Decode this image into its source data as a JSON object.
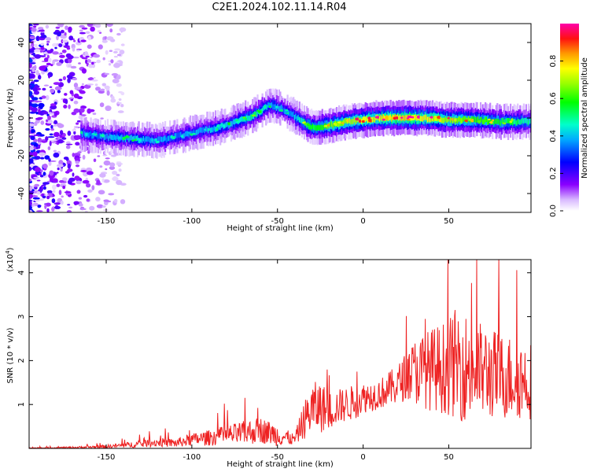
{
  "title": "C2E1.2024.102.11.14.R04",
  "colors": {
    "signal": "#ee2222",
    "frame": "#000000"
  },
  "chart_data": [
    {
      "type": "heatmap",
      "xlabel": "Height of straight line (km)",
      "ylabel": "Frequency (Hz)",
      "xlim": [
        -195,
        98
      ],
      "ylim": [
        -50,
        50
      ],
      "xticks": [
        -150,
        -100,
        -50,
        0,
        50
      ],
      "yticks": [
        -40,
        -20,
        0,
        20,
        40
      ],
      "colorbar": {
        "label": "Normalized spectral amplitude",
        "range": [
          0,
          1
        ],
        "ticks": [
          "0.0",
          "0.2",
          "0.4",
          "0.6",
          "0.8"
        ],
        "colormap": "rainbow (white-violet-blue-cyan-green-yellow-red-magenta)"
      },
      "ridge": {
        "x": [
          -195,
          -180,
          -165,
          -150,
          -135,
          -120,
          -100,
          -80,
          -65,
          -55,
          -48,
          -42,
          -36,
          -30,
          -20,
          -10,
          0,
          10,
          20,
          35,
          50,
          65,
          80,
          98
        ],
        "y": [
          -10,
          -9,
          -8,
          -10,
          -11,
          -12,
          -8,
          -4,
          1,
          7,
          5,
          2,
          -2,
          -5,
          -4,
          -2,
          -1,
          0,
          0,
          0,
          -1,
          -1,
          -2,
          -2
        ],
        "peak_amplitude": [
          0.25,
          0.35,
          0.45,
          0.45,
          0.5,
          0.45,
          0.45,
          0.5,
          0.6,
          0.5,
          0.45,
          0.45,
          0.6,
          0.7,
          0.8,
          0.85,
          0.9,
          0.95,
          1.0,
          0.95,
          0.85,
          0.75,
          0.7,
          0.6
        ]
      }
    },
    {
      "type": "line",
      "xlabel": "Height of straight line (km)",
      "ylabel": "SNR (10 * v/v)",
      "multiplier": "(x10",
      "multiplier_exp": "4",
      "xlim": [
        -195,
        98
      ],
      "ylim": [
        0,
        4.3
      ],
      "xticks": [
        -150,
        -100,
        -50,
        0,
        50
      ],
      "yticks": [
        1,
        2,
        3,
        4
      ],
      "series": [
        {
          "name": "SNR",
          "x": [
            -195,
            -170,
            -150,
            -130,
            -120,
            -110,
            -100,
            -90,
            -80,
            -70,
            -60,
            -50,
            -40,
            -35,
            -30,
            -25,
            -20,
            -15,
            -10,
            -5,
            0,
            10,
            20,
            25,
            30,
            40,
            50,
            55,
            60,
            70,
            80,
            90,
            98
          ],
          "mean": [
            0.01,
            0.02,
            0.04,
            0.1,
            0.14,
            0.12,
            0.2,
            0.24,
            0.3,
            0.34,
            0.42,
            0.3,
            0.2,
            0.6,
            0.9,
            0.95,
            0.85,
            0.95,
            1.0,
            1.05,
            1.15,
            1.25,
            1.45,
            1.65,
            1.75,
            1.8,
            1.85,
            1.95,
            1.85,
            1.75,
            1.65,
            1.6,
            1.55
          ],
          "spread": [
            0.01,
            0.02,
            0.04,
            0.08,
            0.1,
            0.1,
            0.14,
            0.18,
            0.22,
            0.28,
            0.3,
            0.25,
            0.12,
            0.4,
            0.6,
            0.6,
            0.45,
            0.4,
            0.4,
            0.4,
            0.35,
            0.35,
            0.45,
            0.55,
            0.75,
            0.95,
            1.1,
            1.3,
            1.25,
            1.1,
            1.0,
            0.95,
            0.9
          ]
        }
      ]
    }
  ]
}
